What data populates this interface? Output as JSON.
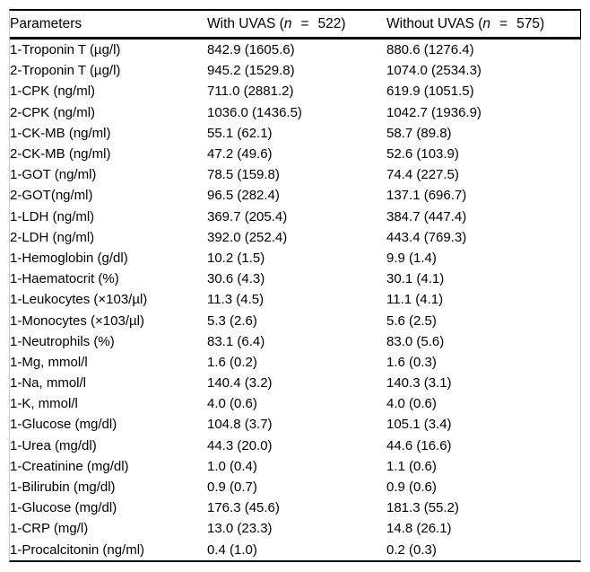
{
  "page": {
    "background_color": "#ffffff",
    "rule_color": "#000000",
    "side_border_color": "#cccccc",
    "text_color": "#000000"
  },
  "table": {
    "columns": {
      "parameters_label": "Parameters",
      "with_uvas": {
        "prefix": "With UVAS (",
        "n": "n",
        "eq": "=",
        "count": "522",
        "close": ")"
      },
      "without_uvas": {
        "prefix": "Without UVAS (",
        "n": "n",
        "eq": "=",
        "count": "575",
        "close": ")"
      }
    },
    "rows": [
      {
        "parameter": "1-Troponin T (µg/l)",
        "with_uvas": "842.9 (1605.6)",
        "without_uvas": "880.6 (1276.4)"
      },
      {
        "parameter": "2-Troponin T (µg/l)",
        "with_uvas": "945.2 (1529.8)",
        "without_uvas": "1074.0 (2534.3)"
      },
      {
        "parameter": "1-CPK (ng/ml)",
        "with_uvas": "711.0 (2881.2)",
        "without_uvas": "619.9 (1051.5)"
      },
      {
        "parameter": "2-CPK (ng/ml)",
        "with_uvas": "1036.0 (1436.5)",
        "without_uvas": "1042.7 (1936.9)"
      },
      {
        "parameter": "1-CK-MB (ng/ml)",
        "with_uvas": "55.1 (62.1)",
        "without_uvas": "58.7 (89.8)"
      },
      {
        "parameter": "2-CK-MB (ng/ml)",
        "with_uvas": "47.2 (49.6)",
        "without_uvas": "52.6 (103.9)"
      },
      {
        "parameter": "1-GOT (ng/ml)",
        "with_uvas": "78.5 (159.8)",
        "without_uvas": "74.4 (227.5)"
      },
      {
        "parameter": "2-GOT(ng/ml)",
        "with_uvas": "96.5 (282.4)",
        "without_uvas": "137.1 (696.7)"
      },
      {
        "parameter": "1-LDH (ng/ml)",
        "with_uvas": "369.7 (205.4)",
        "without_uvas": "384.7 (447.4)"
      },
      {
        "parameter": "2-LDH (ng/ml)",
        "with_uvas": "392.0 (252.4)",
        "without_uvas": "443.4 (769.3)"
      },
      {
        "parameter": "1-Hemoglobin (g/dl)",
        "with_uvas": "10.2 (1.5)",
        "without_uvas": "9.9 (1.4)"
      },
      {
        "parameter": "1-Haematocrit (%)",
        "with_uvas": "30.6 (4.3)",
        "without_uvas": "30.1 (4.1)"
      },
      {
        "parameter": "1-Leukocytes (×103/µl)",
        "with_uvas": "11.3 (4.5)",
        "without_uvas": "11.1 (4.1)"
      },
      {
        "parameter": "1-Monocytes (×103/µl)",
        "with_uvas": "5.3 (2.6)",
        "without_uvas": "5.6 (2.5)"
      },
      {
        "parameter": "1-Neutrophils (%)",
        "with_uvas": "83.1 (6.4)",
        "without_uvas": "83.0 (5.6)"
      },
      {
        "parameter": "1-Mg, mmol/l",
        "with_uvas": "1.6 (0.2)",
        "without_uvas": "1.6 (0.3)"
      },
      {
        "parameter": "1-Na, mmol/l",
        "with_uvas": "140.4 (3.2)",
        "without_uvas": "140.3 (3.1)"
      },
      {
        "parameter": "1-K, mmol/l",
        "with_uvas": "4.0 (0.6)",
        "without_uvas": "4.0 (0.6)"
      },
      {
        "parameter": "1-Glucose (mg/dl)",
        "with_uvas": "104.8 (3.7)",
        "without_uvas": "105.1 (3.4)"
      },
      {
        "parameter": "1-Urea (mg/dl)",
        "with_uvas": "44.3 (20.0)",
        "without_uvas": "44.6 (16.6)"
      },
      {
        "parameter": "1-Creatinine (mg/dl)",
        "with_uvas": "1.0 (0.4)",
        "without_uvas": "1.1 (0.6)"
      },
      {
        "parameter": "1-Bilirubin (mg/dl)",
        "with_uvas": "0.9 (0.7)",
        "without_uvas": "0.9 (0.6)"
      },
      {
        "parameter": "1-Glucose (mg/dl)",
        "with_uvas": "176.3 (45.6)",
        "without_uvas": "181.3 (55.2)"
      },
      {
        "parameter": "1-CRP (mg/l)",
        "with_uvas": "13.0 (23.3)",
        "without_uvas": "14.8 (26.1)"
      },
      {
        "parameter": "1-Procalcitonin (ng/ml)",
        "with_uvas": "0.4 (1.0)",
        "without_uvas": "0.2 (0.3)"
      }
    ]
  }
}
